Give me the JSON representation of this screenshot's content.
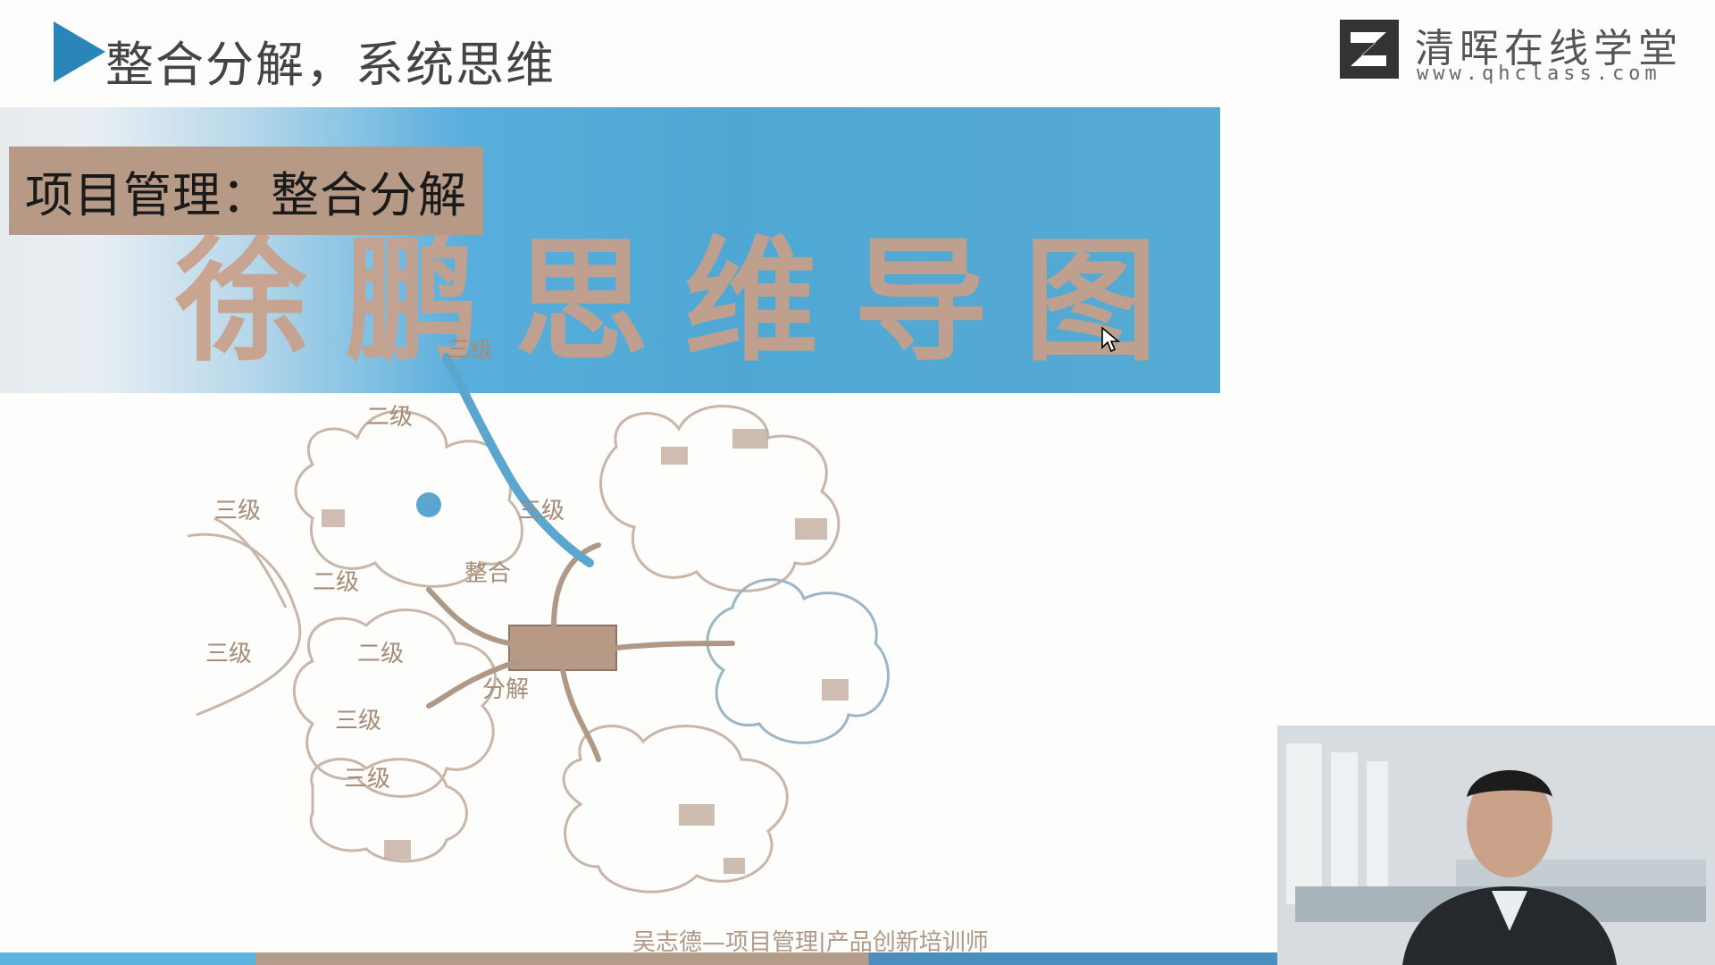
{
  "header": {
    "title": "整合分解，系统思维"
  },
  "logo": {
    "name": "清晖在线学堂",
    "url": "www.qhclass.com"
  },
  "banner": {
    "caption": "项目管理：整合分解",
    "big_title": "徐鹏思维导图"
  },
  "mindmap": {
    "labels": {
      "top_left_level2": "二级",
      "top_level3": "三级",
      "left_level3_a": "三级",
      "left_level3_b": "三级",
      "left_level2": "二级",
      "center_left": "整合",
      "top_branch": "三级",
      "bottom_branch_1": "二级",
      "bottom_branch_2": "三级",
      "bottom_branch_3": "三级",
      "mid_branch": "分解"
    }
  },
  "footer": {
    "text": "吴志德—项目管理|产品创新培训师"
  },
  "colors": {
    "accent": "#2a86b8",
    "banner_blue": "#4fa8d4",
    "caption_bg": "#b79a86"
  }
}
